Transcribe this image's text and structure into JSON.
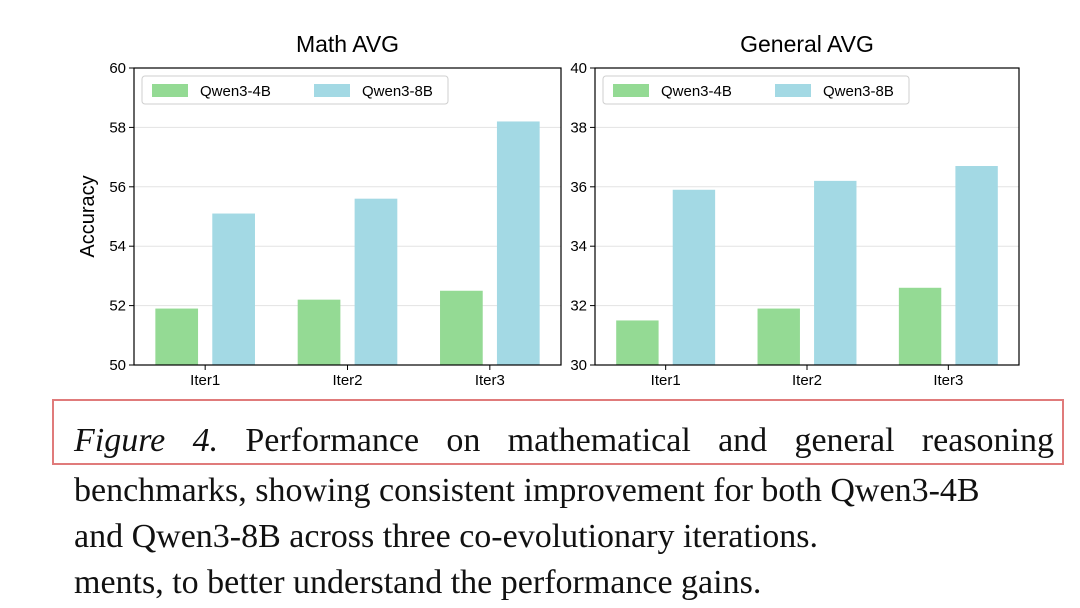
{
  "colors": {
    "series_4b": "#94da94",
    "series_8b": "#a3d9e4"
  },
  "chart_data": [
    {
      "type": "bar",
      "title": "Math AVG",
      "categories": [
        "Iter1",
        "Iter2",
        "Iter3"
      ],
      "series": [
        {
          "name": "Qwen3-4B",
          "values": [
            51.9,
            52.2,
            52.5
          ]
        },
        {
          "name": "Qwen3-8B",
          "values": [
            55.1,
            55.6,
            58.2
          ]
        }
      ],
      "ylabel": "Accuracy",
      "xlabel": "",
      "ylim": [
        50,
        60
      ],
      "yticks": [
        50,
        52,
        54,
        56,
        58,
        60
      ],
      "legend": "top-left",
      "grid": true
    },
    {
      "type": "bar",
      "title": "General AVG",
      "categories": [
        "Iter1",
        "Iter2",
        "Iter3"
      ],
      "series": [
        {
          "name": "Qwen3-4B",
          "values": [
            31.5,
            31.9,
            32.6
          ]
        },
        {
          "name": "Qwen3-8B",
          "values": [
            35.9,
            36.2,
            36.7
          ]
        }
      ],
      "ylabel": "",
      "xlabel": "",
      "ylim": [
        30,
        40
      ],
      "yticks": [
        30,
        32,
        34,
        36,
        38,
        40
      ],
      "legend": "top-left",
      "grid": true
    }
  ],
  "caption": {
    "label": "Figure 4.",
    "line1": "Performance on mathematical and general reasoning",
    "line2": "benchmarks, showing consistent improvement for both Qwen3-4B",
    "line3": "and Qwen3-8B across three co-evolutionary iterations.",
    "line4": "ments, to better understand the performance gains."
  }
}
